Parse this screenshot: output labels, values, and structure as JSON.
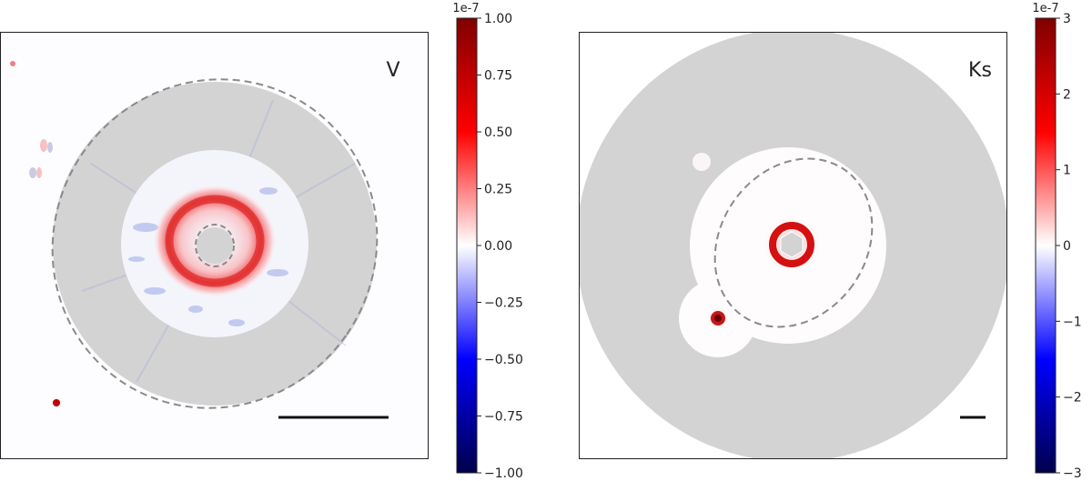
{
  "panels": [
    {
      "band_label": "V",
      "colorbar": {
        "exponent_label": "1e-7",
        "ticks": [
          "1.00",
          "0.75",
          "0.50",
          "0.25",
          "0.00",
          "−0.25",
          "−0.50",
          "−0.75",
          "−1.00"
        ],
        "range": [
          -1.0,
          1.0
        ]
      }
    },
    {
      "band_label": "Ks",
      "colorbar": {
        "exponent_label": "1e-7",
        "ticks": [
          "3",
          "2",
          "1",
          "0",
          "−1",
          "−2",
          "−3"
        ],
        "range": [
          -3,
          3
        ]
      }
    }
  ],
  "colormap": {
    "name": "seismic",
    "stops": [
      "#00004c",
      "#0000ff",
      "#ffffff",
      "#ff0000",
      "#800000"
    ]
  },
  "mask_color": "#d3d3d3",
  "contour_color": "#8a8a8a"
}
